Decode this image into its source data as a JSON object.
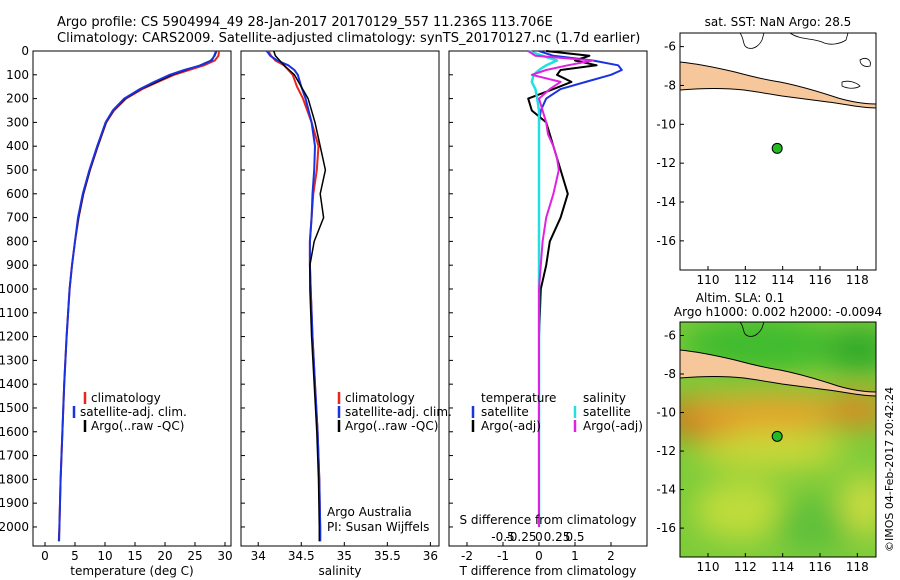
{
  "header": {
    "line1": "Argo profile: CS 5904994_49 28-Jan-2017 20170129_557 11.236S 113.706E",
    "line2": "Climatology: CARS2009. Satellite-adjusted climatology: synTS_20170127.nc (1.7d earlier)"
  },
  "colors": {
    "climatology": "#e8251e",
    "satellite": "#1a33e0",
    "argo": "#000000",
    "temperature_diff_satellite": "#1a33e0",
    "temperature_diff_argo": "#000000",
    "salinity_diff_satellite": "#22e0e0",
    "salinity_diff_argo": "#e022e0",
    "land": "#f5c79a",
    "marker": "#22bb22"
  },
  "panels": {
    "temperature": {
      "xlabel": "temperature (deg C)",
      "legend": [
        "climatology",
        "satellite-adj. clim.",
        "Argo(..raw -QC)"
      ]
    },
    "salinity": {
      "xlabel": "salinity",
      "legend": [
        "climatology",
        "satellite-adj. clim.",
        "Argo(..raw -QC)"
      ],
      "credit1": "Argo Australia",
      "credit2": "PI: Susan Wijffels"
    },
    "difference": {
      "xlabel_bottom": "T difference from climatology",
      "xlabel_top": "S difference from climatology",
      "legend_temperature_title": "temperature",
      "legend_salinity_title": "salinity",
      "legend_items": [
        "satellite",
        "Argo(-adj)",
        "satellite",
        "Argo(-adj)"
      ]
    },
    "sst_map": {
      "title": "sat. SST: NaN Argo: 28.5"
    },
    "sla_map": {
      "title1": "Altim. SLA: 0.1",
      "title2": "Argo h1000: 0.002 h2000: -0.0094"
    },
    "footer_vertical": "©IMOS 04-Feb-2017 20:42:24"
  },
  "chart_data": [
    {
      "type": "line",
      "name": "temperature profile",
      "xlabel": "temperature (deg C)",
      "ylabel": "",
      "xlim": [
        -2,
        31
      ],
      "ylim": [
        2080,
        0
      ],
      "x_ticks": [
        0,
        5,
        10,
        15,
        20,
        25,
        30
      ],
      "y_ticks": [
        0,
        100,
        200,
        300,
        400,
        500,
        600,
        700,
        800,
        900,
        1000,
        1100,
        1200,
        1300,
        1400,
        1500,
        1600,
        1700,
        1800,
        1900,
        2000
      ],
      "depth": [
        0,
        20,
        40,
        60,
        80,
        100,
        130,
        160,
        200,
        250,
        300,
        350,
        400,
        500,
        600,
        700,
        800,
        900,
        1000,
        1200,
        1400,
        1600,
        1800,
        2000,
        2060
      ],
      "series": [
        {
          "name": "climatology",
          "values": [
            29.0,
            28.9,
            28.3,
            26.5,
            24.0,
            21.5,
            18.8,
            16.2,
            13.5,
            11.5,
            10.2,
            9.5,
            8.8,
            7.5,
            6.4,
            5.6,
            5.0,
            4.5,
            4.1,
            3.6,
            3.2,
            2.9,
            2.6,
            2.4,
            2.3
          ]
        },
        {
          "name": "satellite-adj. clim.",
          "values": [
            28.6,
            28.3,
            27.6,
            25.8,
            23.5,
            21.2,
            18.6,
            16.0,
            13.4,
            11.4,
            10.2,
            9.5,
            8.8,
            7.5,
            6.4,
            5.6,
            5.0,
            4.5,
            4.1,
            3.6,
            3.2,
            2.9,
            2.6,
            2.4,
            2.3
          ]
        },
        {
          "name": "Argo(..raw -QC)",
          "values": [
            28.5,
            28.2,
            27.8,
            26.0,
            23.2,
            20.8,
            18.2,
            15.8,
            13.2,
            11.3,
            10.1,
            9.4,
            8.7,
            7.4,
            6.3,
            5.5,
            5.0,
            4.5,
            4.1,
            3.6,
            3.2,
            2.9,
            2.6,
            2.4,
            2.35
          ]
        }
      ]
    },
    {
      "type": "line",
      "name": "salinity profile",
      "xlabel": "salinity",
      "ylabel": "",
      "xlim": [
        33.8,
        36.1
      ],
      "ylim": [
        2080,
        0
      ],
      "x_ticks": [
        34,
        34.5,
        35,
        35.5,
        36
      ],
      "x_tick_labels": [
        "34",
        "34.5",
        "35",
        "35.5",
        "36"
      ],
      "depth": [
        0,
        20,
        40,
        60,
        80,
        100,
        150,
        200,
        300,
        400,
        500,
        600,
        700,
        800,
        900,
        1000,
        1200,
        1400,
        1600,
        1800,
        2000,
        2060
      ],
      "series": [
        {
          "name": "climatology",
          "values": [
            34.12,
            34.15,
            34.2,
            34.3,
            34.35,
            34.4,
            34.45,
            34.52,
            34.62,
            34.7,
            34.68,
            34.64,
            34.62,
            34.6,
            34.6,
            34.61,
            34.63,
            34.66,
            34.69,
            34.71,
            34.72,
            34.72
          ]
        },
        {
          "name": "satellite-adj. clim.",
          "values": [
            34.1,
            34.14,
            34.22,
            34.35,
            34.42,
            34.46,
            34.5,
            34.55,
            34.62,
            34.66,
            34.65,
            34.63,
            34.62,
            34.6,
            34.6,
            34.61,
            34.63,
            34.66,
            34.69,
            34.71,
            34.72,
            34.72
          ]
        },
        {
          "name": "Argo(..raw -QC)",
          "values": [
            34.18,
            34.2,
            34.25,
            34.3,
            34.36,
            34.42,
            34.5,
            34.58,
            34.66,
            34.72,
            34.78,
            34.72,
            34.76,
            34.65,
            34.6,
            34.6,
            34.62,
            34.65,
            34.68,
            34.7,
            34.71,
            34.71
          ]
        }
      ]
    },
    {
      "type": "line",
      "name": "difference from climatology",
      "xlabel": "T difference from climatology",
      "x2label": "S difference from climatology",
      "xlim": [
        -2.5,
        3.0
      ],
      "ylim": [
        2080,
        0
      ],
      "x_ticks": [
        -2,
        -1,
        0,
        1,
        2
      ],
      "x2_ticks": [
        -0.5,
        -0.25,
        0,
        0.25,
        0.5
      ],
      "x2_tick_labels": [
        "-0.5",
        "-0.25",
        "0",
        "0.25",
        "0.5"
      ],
      "depth": [
        0,
        20,
        40,
        60,
        80,
        100,
        130,
        160,
        200,
        250,
        300,
        350,
        400,
        450,
        500,
        600,
        700,
        800,
        900,
        1000,
        1200,
        1400,
        1600,
        1800,
        2000
      ],
      "series": [
        {
          "name": "temperature satellite",
          "values": [
            0.0,
            0.4,
            1.5,
            2.2,
            2.3,
            2.0,
            1.3,
            0.6,
            0.2,
            0.05,
            0.0,
            0.0,
            0.0,
            0.0,
            0.0,
            0.0,
            0.0,
            0.0,
            0.0,
            0.0,
            0.0,
            0.0,
            0.0,
            0.0,
            0.0
          ]
        },
        {
          "name": "temperature Argo(-adj)",
          "values": [
            0.2,
            1.4,
            1.0,
            1.6,
            0.6,
            0.5,
            0.9,
            0.4,
            -0.3,
            -0.2,
            0.2,
            0.3,
            0.4,
            0.5,
            0.6,
            0.8,
            0.6,
            0.3,
            0.2,
            0.05,
            0.0,
            0.0,
            0.0,
            0.0,
            0.0
          ]
        },
        {
          "name": "salinity satellite",
          "values": [
            -0.3,
            0.1,
            0.5,
            0.2,
            0.0,
            -0.15,
            -0.2,
            -0.1,
            -0.05,
            0.0,
            0.0,
            0.0,
            0.0,
            0.0,
            0.0,
            0.0,
            0.0,
            0.0,
            0.0,
            0.0,
            0.0,
            0.0,
            0.0,
            0.0,
            0.0
          ]
        },
        {
          "name": "salinity Argo(-adj)",
          "values": [
            -0.3,
            -0.1,
            1.5,
            0.8,
            0.2,
            -0.2,
            0.6,
            0.3,
            0.0,
            0.1,
            0.2,
            0.25,
            0.4,
            0.5,
            0.55,
            0.4,
            0.2,
            0.1,
            0.05,
            0.0,
            0.0,
            0.0,
            0.0,
            0.0,
            0.0
          ]
        }
      ]
    },
    {
      "type": "map",
      "name": "sst map",
      "title": "sat. SST: NaN Argo: 28.5",
      "xlim": [
        108.5,
        119
      ],
      "ylim": [
        -17.5,
        -5.3
      ],
      "x_ticks": [
        110,
        112,
        114,
        116,
        118
      ],
      "y_ticks": [
        -6,
        -8,
        -10,
        -12,
        -14,
        -16
      ],
      "marker": {
        "lon": 113.706,
        "lat": -11.236
      }
    },
    {
      "type": "heatmap",
      "name": "sla map",
      "title": "Altim. SLA: 0.1",
      "xlim": [
        108.5,
        119
      ],
      "ylim": [
        -17.5,
        -5.3
      ],
      "x_ticks": [
        110,
        112,
        114,
        116,
        118
      ],
      "y_ticks": [
        -6,
        -8,
        -10,
        -12,
        -14,
        -16
      ],
      "marker": {
        "lon": 113.706,
        "lat": -11.236
      }
    }
  ]
}
